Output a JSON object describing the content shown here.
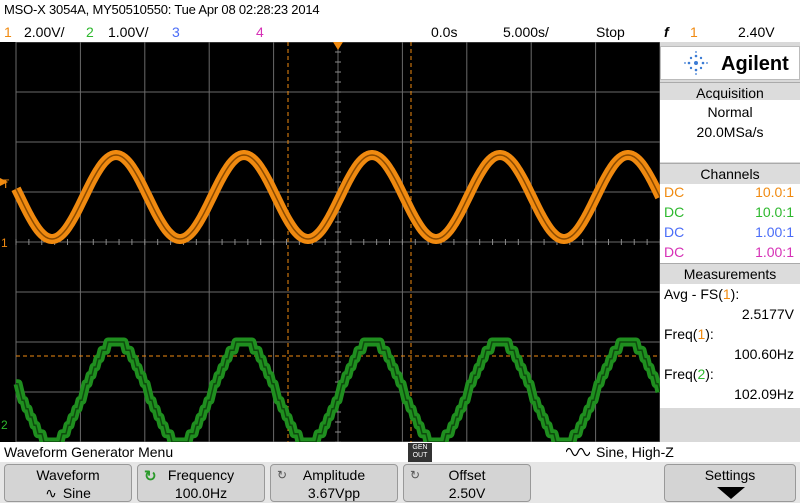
{
  "header": {
    "title": "MSO-X 3054A, MY50510550: Tue Apr 08 02:28:23 2014"
  },
  "channels_row": {
    "ch1_num": "1",
    "ch1_scale": "2.00V/",
    "ch2_num": "2",
    "ch2_scale": "1.00V/",
    "ch3_num": "3",
    "ch4_num": "4",
    "time_offset": "0.0s",
    "time_scale": "5.000s/",
    "run_state": "Stop",
    "trigger_symbol": "f",
    "trigger_ch": "1",
    "trigger_level": "2.40V"
  },
  "sidebar": {
    "brand": "Agilent",
    "acquisition": {
      "title": "Acquisition",
      "mode": "Normal",
      "rate": "20.0MSa/s"
    },
    "channels": {
      "title": "Channels",
      "items": [
        {
          "coupling": "DC",
          "probe": "10.0:1",
          "color": "#f08a10"
        },
        {
          "coupling": "DC",
          "probe": "10.0:1",
          "color": "#2db82d"
        },
        {
          "coupling": "DC",
          "probe": "1.00:1",
          "color": "#4a6cf7"
        },
        {
          "coupling": "DC",
          "probe": "1.00:1",
          "color": "#d630b6"
        }
      ]
    },
    "measurements": {
      "title": "Measurements",
      "items": [
        {
          "label": "Avg - FS(",
          "ch": "1",
          "end": "):",
          "value": "2.5177V"
        },
        {
          "label": "Freq(",
          "ch": "1",
          "end": "):",
          "value": "100.60Hz"
        },
        {
          "label": "Freq(",
          "ch": "2",
          "end": "):",
          "value": "102.09Hz"
        }
      ]
    }
  },
  "status_bar": {
    "menu_title": "Waveform Generator Menu",
    "gen_out": "GEN\nOUT",
    "wave_info": "Sine, High-Z"
  },
  "softkeys": {
    "waveform": {
      "top": "Waveform",
      "bottom": "Sine"
    },
    "frequency": {
      "top": "Frequency",
      "bottom": "100.0Hz"
    },
    "amplitude": {
      "top": "Amplitude",
      "bottom": "3.67Vpp"
    },
    "offset": {
      "top": "Offset",
      "bottom": "2.50V"
    },
    "settings": {
      "top": "Settings"
    }
  },
  "colors": {
    "ch1": "#f08a10",
    "ch2": "#2db82d",
    "ch3": "#4a6cf7",
    "ch4": "#d630b6"
  }
}
